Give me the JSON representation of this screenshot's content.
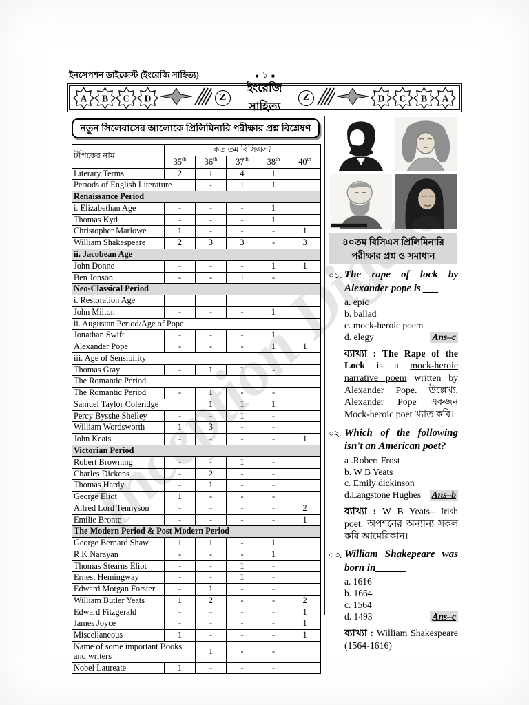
{
  "page_header": {
    "left_title": "ইনসেপশন ডাইজেস্ট (ইংরেজি সাহিত্য)",
    "marker": "■",
    "page_number": "১"
  },
  "deco_bar": {
    "left_letters": [
      "A",
      "B",
      "C",
      "D"
    ],
    "right_letters": [
      "D",
      "C",
      "B",
      "A"
    ],
    "z_left": "Z",
    "z_right": "Z",
    "center_title": "ইংরেজি সাহিত্য"
  },
  "watermark": "Inception Digest",
  "analysis": {
    "title": "নতুন সিলেবাসের আলোকে প্রিলিমিনারি পরীক্ষার প্রশ্ন বিশ্লেষণ",
    "table": {
      "topic_header": "টপিকের নাম",
      "group_header": "কত তম বিসিএস?",
      "columns": [
        {
          "label": "35",
          "sup": "th"
        },
        {
          "label": "36",
          "sup": "th"
        },
        {
          "label": "37",
          "sup": "th"
        },
        {
          "label": "38",
          "sup": "th"
        },
        {
          "label": "40",
          "sup": "th"
        }
      ],
      "rows": [
        {
          "type": "data",
          "name": "Literary Terms",
          "values": [
            "2",
            "1",
            "4",
            "1",
            ""
          ]
        },
        {
          "type": "data",
          "name": "Periods of English Literature",
          "merged": true,
          "values": [
            "-",
            "1",
            "1",
            ""
          ]
        },
        {
          "type": "section",
          "name": "Renaissance Period"
        },
        {
          "type": "data",
          "name": "i. Elizabethan Age",
          "values": [
            "-",
            "-",
            "-",
            "1",
            ""
          ]
        },
        {
          "type": "data",
          "name": "Thomas Kyd",
          "values": [
            "-",
            "-",
            "-",
            "1",
            ""
          ]
        },
        {
          "type": "data",
          "name": "Christopher Marlowe",
          "values": [
            "1",
            "-",
            "-",
            "-",
            "1"
          ]
        },
        {
          "type": "data",
          "name": "William Shakespeare",
          "values": [
            "2",
            "3",
            "3",
            "-",
            "3"
          ]
        },
        {
          "type": "section",
          "name": "ii. Jacobean Age"
        },
        {
          "type": "data",
          "name": "John Donne",
          "values": [
            "-",
            "-",
            "-",
            "1",
            "1"
          ]
        },
        {
          "type": "data",
          "name": "Ben Jonson",
          "values": [
            "-",
            "-",
            "1",
            "-",
            ""
          ]
        },
        {
          "type": "section",
          "name": "Neo-Classical Period"
        },
        {
          "type": "data",
          "name": "i. Restoration Age",
          "bold": true,
          "values": [
            "",
            "",
            "",
            "",
            ""
          ]
        },
        {
          "type": "data",
          "name": "John Milton",
          "values": [
            "-",
            "-",
            "-",
            "1",
            ""
          ]
        },
        {
          "type": "span4",
          "name": "ii. Augustan Period/Age of Pope"
        },
        {
          "type": "data",
          "name": "Jonathan Swift",
          "values": [
            "-",
            "-",
            "-",
            "1",
            ""
          ]
        },
        {
          "type": "data",
          "name": "Alexander Pope",
          "values": [
            "-",
            "-",
            "-",
            "1",
            "1"
          ]
        },
        {
          "type": "fullbold",
          "name": "iii. Age of Sensibility"
        },
        {
          "type": "data",
          "name": "Thomas Gray",
          "values": [
            "-",
            "1",
            "1",
            "-",
            ""
          ]
        },
        {
          "type": "fullplain",
          "name": "The Romantic Period"
        },
        {
          "type": "data",
          "name": "The Romantic Period",
          "values": [
            "-",
            "1",
            "-",
            "-",
            ""
          ]
        },
        {
          "type": "data",
          "name": "Samuel Taylor Coleridge",
          "merged": true,
          "values": [
            "1",
            "1",
            "1",
            ""
          ]
        },
        {
          "type": "data",
          "name": "Percy Bysshe Shelley",
          "values": [
            "-",
            "-",
            "1",
            "-",
            ""
          ]
        },
        {
          "type": "data",
          "name": "William Wordsworth",
          "values": [
            "1",
            "3",
            "-",
            "-",
            ""
          ]
        },
        {
          "type": "data",
          "name": "John Keats",
          "values": [
            "-",
            "-",
            "-",
            "-",
            "1"
          ]
        },
        {
          "type": "section",
          "name": "Victorian Period"
        },
        {
          "type": "data",
          "name": "Robert Browning",
          "values": [
            "-",
            "-",
            "1",
            "-",
            ""
          ]
        },
        {
          "type": "data",
          "name": "Charles Dickens",
          "values": [
            "-",
            "2",
            "-",
            "-",
            ""
          ]
        },
        {
          "type": "data",
          "name": "Thomas Hardy",
          "values": [
            "-",
            "1",
            "-",
            "-",
            ""
          ]
        },
        {
          "type": "data",
          "name": "George Eliot",
          "values": [
            "1",
            "-",
            "-",
            "-",
            ""
          ]
        },
        {
          "type": "data",
          "name": "Alfred Lord Tennyson",
          "values": [
            "-",
            "-",
            "-",
            "-",
            "2"
          ]
        },
        {
          "type": "data",
          "name": "Emilie Bronte",
          "values": [
            "-",
            "-",
            "-",
            "-",
            "1"
          ]
        },
        {
          "type": "section",
          "name": "The Modern Period & Post Modern Period"
        },
        {
          "type": "data",
          "name": "George Bernard Shaw",
          "values": [
            "1",
            "1",
            "-",
            "1",
            ""
          ]
        },
        {
          "type": "data",
          "name": "R K Narayan",
          "values": [
            "-",
            "-",
            "-",
            "1",
            ""
          ]
        },
        {
          "type": "data",
          "name": "Thomas Stearns Eliot",
          "values": [
            "-",
            "-",
            "1",
            "-",
            ""
          ]
        },
        {
          "type": "data",
          "name": "Ernest Hemingway",
          "values": [
            "-",
            "-",
            "1",
            "-",
            ""
          ]
        },
        {
          "type": "data",
          "name": "Edward Morgan Forster",
          "values": [
            "-",
            "1",
            "-",
            "-",
            ""
          ]
        },
        {
          "type": "data",
          "name": "William Butler Yeats",
          "values": [
            "1",
            "2",
            "-",
            "-",
            "2"
          ]
        },
        {
          "type": "data",
          "name": "Edward Fitzgerald",
          "values": [
            "-",
            "-",
            "-",
            "-",
            "1"
          ]
        },
        {
          "type": "data",
          "name": "James Joyce",
          "values": [
            "-",
            "-",
            "-",
            "-",
            "1"
          ]
        },
        {
          "type": "data",
          "name": "Miscellaneous",
          "bold": true,
          "values": [
            "1",
            "-",
            "-",
            "-",
            "1"
          ]
        },
        {
          "type": "data",
          "name": "Name of some important Books and writers",
          "merged": true,
          "values": [
            "1",
            "-",
            "-",
            ""
          ]
        },
        {
          "type": "data",
          "name": "Nobel Laureate",
          "bold": true,
          "values": [
            "1",
            "-",
            "-",
            "-",
            ""
          ]
        }
      ]
    }
  },
  "portraits": [
    "shakespeare-silhouette-portrait",
    "curly-wig-engraving-portrait",
    "bearded-man-engraving-portrait",
    "hooded-man-photo-portrait"
  ],
  "solutions": {
    "box_title": "৪০তম বিসিএস প্রিলিমিনারি পরীক্ষার প্রশ্ন ও সমাধান",
    "explanation_label": "ব্যাখ্যা :",
    "questions": [
      {
        "no": "০১.",
        "text": "The rape of lock by Alexander pope is ___",
        "options": [
          "a. epic",
          "b. ballad",
          "c. mock-heroic poem"
        ],
        "last_option": "d. elegy",
        "answer": "Ans–c",
        "explanation_segments": [
          {
            "t": "The Rape of the Lock",
            "s": "b"
          },
          {
            "t": " is a ",
            "s": ""
          },
          {
            "t": "mock-heroic narrative poem",
            "s": "u"
          },
          {
            "t": " written by ",
            "s": ""
          },
          {
            "t": "Alexander Pope.",
            "s": "u"
          },
          {
            "t": " উল্লেখ্য, Alexander Pope একজন Mock-heroic poet খ্যাত কবি।",
            "s": ""
          }
        ]
      },
      {
        "no": "০২.",
        "text": "Which of the following isn't an American poet?",
        "options": [
          "a .Robert Frost",
          "b. W B Yeats",
          "c. Emily dickinson"
        ],
        "last_option": "d.Langstone Hughes",
        "answer": "Ans–b",
        "explanation_segments": [
          {
            "t": "W B Yeats– Irish poet. অপশনের অন্যান্য সকল কবি আমেরিকান।",
            "s": ""
          }
        ]
      },
      {
        "no": "০৩.",
        "text": "William Shakepeare was born in______",
        "options": [
          "a. 1616",
          "b. 1664",
          "c. 1564"
        ],
        "last_option": "d. 1493",
        "answer": "Ans–c",
        "explanation_segments": [
          {
            "t": "William Shakespeare (1564-1616)",
            "s": ""
          }
        ]
      }
    ]
  }
}
